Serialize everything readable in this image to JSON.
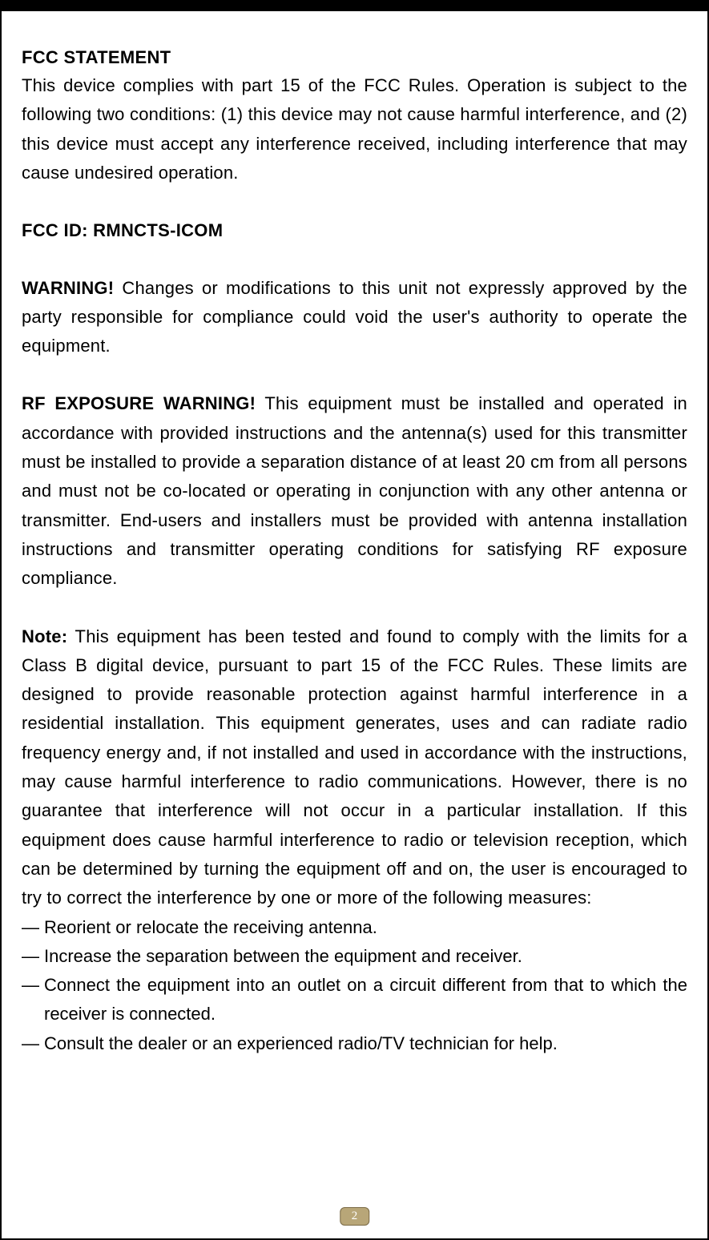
{
  "page": {
    "number": "2",
    "background_color": "#ffffff",
    "text_color": "#000000",
    "frame_border_color": "#000000",
    "top_bar_color": "#000000",
    "badge_bg": "#b8a678",
    "badge_border": "#7a6a45",
    "badge_text_color": "#ffffff",
    "body_fontsize": 22,
    "heading_fontsize": 22
  },
  "sections": {
    "fcc_statement": {
      "heading": "FCC STATEMENT",
      "body": "This device complies with part 15 of the FCC Rules. Operation is subject to the following two conditions: (1) this device may not cause harmful interference, and (2) this device must accept any interference received, including interference that may cause undesired operation."
    },
    "fcc_id": {
      "heading": "FCC ID: RMNCTS-ICOM"
    },
    "warning": {
      "heading": "WARNING!",
      "body": "  Changes or modifications to this unit not expressly approved by the party responsible for compliance could void the user's authority to operate the equipment."
    },
    "rf_exposure": {
      "heading": "RF EXPOSURE WARNING!",
      "body": " This equipment must be installed and operated in accordance with provided instructions and the antenna(s) used for this transmitter must be installed to provide a separation distance of at least 20 cm from all persons and must not be co-located or operating in conjunction with any other antenna or transmitter. End-users and installers must be provided with antenna installation instructions and transmitter operating conditions for satisfying RF exposure compliance."
    },
    "note": {
      "heading": "Note:",
      "body": " This equipment has been tested and found to comply with the limits for a Class B digital device, pursuant to part 15 of the FCC Rules. These limits are designed to provide reasonable protection against harmful interference in a residential installation. This equipment generates, uses and can radiate radio frequency energy and, if not installed and used in accordance with the instructions, may cause harmful interference to radio communications. However, there is no guarantee that interference will not occur in a particular installation. If this equipment does cause harmful interference to radio or television reception, which can be determined by turning the equipment off and on, the user is encouraged to try to correct the interference by one or more of the following measures:"
    },
    "measures": {
      "dash": "—",
      "items": [
        "Reorient or relocate the receiving antenna.",
        "Increase the separation between the equipment and receiver.",
        "Connect the equipment into an outlet on a circuit different from that to which the receiver is connected.",
        "Consult the dealer or an experienced radio/TV technician for help."
      ]
    }
  }
}
